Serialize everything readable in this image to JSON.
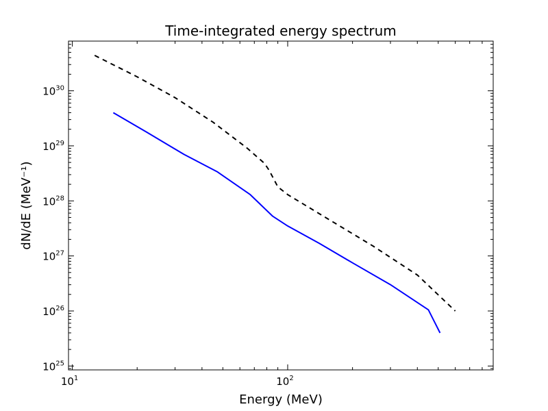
{
  "chart_data": {
    "type": "line",
    "title": "Time-integrated energy spectrum",
    "xlabel": "Energy (MeV)",
    "ylabel": "dN/dE (MeV⁻¹)",
    "xscale": "log",
    "yscale": "log",
    "xlim": [
      9.6,
      900
    ],
    "ylim": [
      8.5e+24,
      8e+30
    ],
    "grid": false,
    "legend": "none",
    "x_ticks": [
      {
        "value": 10,
        "base": "10",
        "exp": "1"
      },
      {
        "value": 100,
        "base": "10",
        "exp": "2"
      }
    ],
    "y_ticks": [
      {
        "value": 1e+25,
        "base": "10",
        "exp": "25"
      },
      {
        "value": 1e+26,
        "base": "10",
        "exp": "26"
      },
      {
        "value": 1e+27,
        "base": "10",
        "exp": "27"
      },
      {
        "value": 1e+28,
        "base": "10",
        "exp": "28"
      },
      {
        "value": 1e+29,
        "base": "10",
        "exp": "29"
      },
      {
        "value": 1e+30,
        "base": "10",
        "exp": "30"
      }
    ],
    "series": [
      {
        "color": "#0000ff",
        "style": "solid",
        "x": [
          15.5,
          22,
          33,
          47,
          67,
          85,
          100,
          140,
          200,
          300,
          450,
          510
        ],
        "y": [
          4e+29,
          1.8e+29,
          7e+28,
          3.4e+28,
          1.3e+28,
          5.3e+27,
          3.5e+27,
          1.7e+27,
          7.5e+26,
          3e+26,
          1.05e+26,
          4e+25
        ]
      },
      {
        "color": "#000000",
        "style": "dashed",
        "x": [
          12.7,
          20,
          30,
          45,
          65,
          78,
          82,
          90,
          100,
          150,
          250,
          400,
          600
        ],
        "y": [
          4.4e+30,
          1.8e+30,
          7.5e+29,
          2.7e+29,
          9e+28,
          4.8e+28,
          3.6e+28,
          1.8e+28,
          1.3e+28,
          5e+27,
          1.5e+27,
          4.5e+26,
          1e+26
        ]
      }
    ]
  }
}
